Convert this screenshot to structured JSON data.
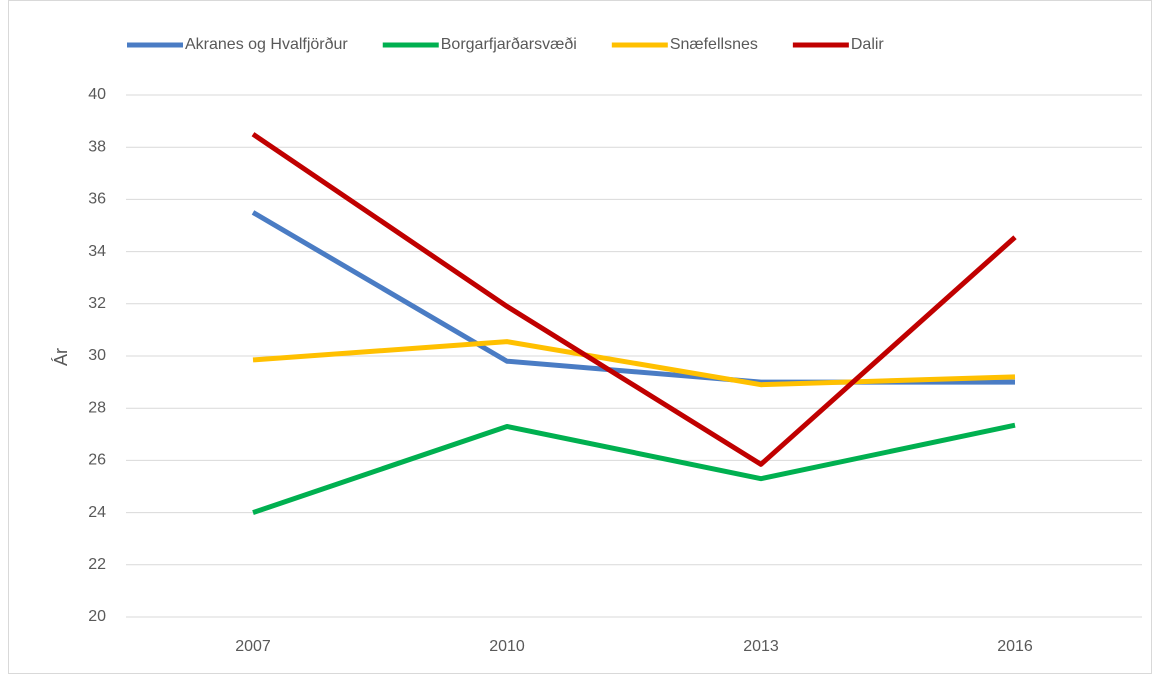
{
  "chart_data": {
    "type": "line",
    "y_label": "Ár",
    "categories": [
      "2007",
      "2010",
      "2013",
      "2016"
    ],
    "series": [
      {
        "name": "Akranes og Hvalfjörður",
        "color": "#4a7cc4",
        "values": [
          35.5,
          29.8,
          29.0,
          29.0
        ]
      },
      {
        "name": "Borgarfjarðarsvæði",
        "color": "#00b050",
        "values": [
          24.0,
          27.3,
          25.3,
          27.35
        ]
      },
      {
        "name": "Snæfellsnes",
        "color": "#ffc000",
        "values": [
          29.85,
          30.55,
          28.9,
          29.2
        ]
      },
      {
        "name": "Dalir",
        "color": "#c00000",
        "values": [
          38.5,
          31.9,
          25.85,
          34.55
        ]
      }
    ],
    "ylim": [
      20,
      40
    ],
    "yticks": [
      20,
      22,
      24,
      26,
      28,
      30,
      32,
      34,
      36,
      38,
      40
    ],
    "grid": true,
    "legend": "top"
  }
}
